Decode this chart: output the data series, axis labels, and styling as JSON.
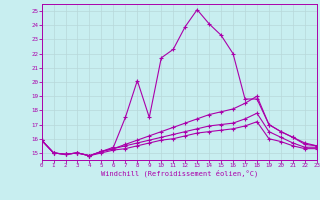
{
  "xlabel": "Windchill (Refroidissement éolien,°C)",
  "bg_color": "#c8eef0",
  "line_color": "#aa00aa",
  "grid_color": "#b8d8da",
  "xlim": [
    0,
    23
  ],
  "ylim": [
    14.5,
    25.5
  ],
  "yticks": [
    15,
    16,
    17,
    18,
    19,
    20,
    21,
    22,
    23,
    24,
    25
  ],
  "xticks": [
    0,
    1,
    2,
    3,
    4,
    5,
    6,
    7,
    8,
    9,
    10,
    11,
    12,
    13,
    14,
    15,
    16,
    17,
    18,
    19,
    20,
    21,
    22,
    23
  ],
  "line1_y": [
    15.9,
    15.0,
    14.9,
    15.0,
    14.8,
    15.1,
    15.4,
    17.5,
    20.1,
    17.5,
    21.7,
    22.3,
    23.9,
    25.1,
    24.1,
    23.3,
    22.0,
    18.8,
    18.8,
    17.0,
    16.5,
    16.1,
    15.6,
    15.5
  ],
  "line2_y": [
    15.9,
    15.0,
    14.9,
    15.0,
    14.8,
    15.1,
    15.3,
    15.6,
    15.9,
    16.2,
    16.5,
    16.8,
    17.1,
    17.4,
    17.7,
    17.9,
    18.1,
    18.5,
    19.0,
    17.0,
    16.5,
    16.1,
    15.7,
    15.5
  ],
  "line3_y": [
    15.9,
    15.0,
    14.9,
    15.0,
    14.8,
    15.1,
    15.3,
    15.5,
    15.7,
    15.9,
    16.1,
    16.3,
    16.5,
    16.7,
    16.9,
    17.0,
    17.1,
    17.4,
    17.8,
    16.5,
    16.1,
    15.7,
    15.4,
    15.4
  ],
  "line4_y": [
    15.9,
    15.0,
    14.9,
    15.0,
    14.8,
    15.0,
    15.2,
    15.3,
    15.5,
    15.7,
    15.9,
    16.0,
    16.2,
    16.4,
    16.5,
    16.6,
    16.7,
    16.9,
    17.2,
    16.0,
    15.8,
    15.5,
    15.3,
    15.3
  ]
}
